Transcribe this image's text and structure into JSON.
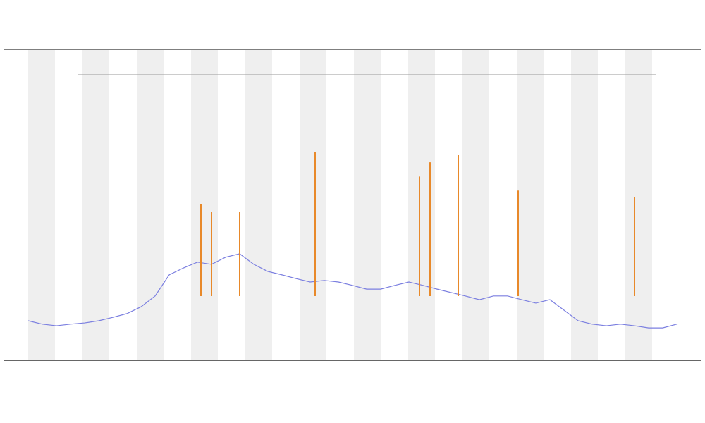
{
  "chart_data": {
    "type": "line",
    "xlim": [
      0,
      920
    ],
    "ylim": [
      0,
      100
    ],
    "series": [
      {
        "color": "#7b7fe0",
        "mark": "line",
        "x": [
          0,
          20,
          40,
          60,
          80,
          100,
          120,
          140,
          160,
          180,
          200,
          220,
          240,
          260,
          280,
          300,
          320,
          340,
          360,
          380,
          400,
          420,
          440,
          460,
          480,
          500,
          520,
          540,
          560,
          580,
          600,
          620,
          640,
          660,
          680,
          700,
          720,
          740,
          760,
          780,
          800,
          820,
          840,
          860,
          880,
          900,
          920
        ],
        "values": [
          12.5,
          11.4,
          10.9,
          11.4,
          11.8,
          12.5,
          13.6,
          14.8,
          17.0,
          20.5,
          27.3,
          29.5,
          31.4,
          30.7,
          33.0,
          34.1,
          30.7,
          28.4,
          27.3,
          26.1,
          25.0,
          25.5,
          25.0,
          23.9,
          22.7,
          22.7,
          23.9,
          25.0,
          23.9,
          22.7,
          21.6,
          20.5,
          19.3,
          20.5,
          20.5,
          19.3,
          18.2,
          19.3,
          15.9,
          12.5,
          11.4,
          10.9,
          11.4,
          10.9,
          10.2,
          10.2,
          11.4
        ]
      },
      {
        "color": "#e8892a",
        "mark": "spike",
        "x": [
          245,
          260,
          300,
          407,
          555,
          570,
          610,
          695,
          860
        ],
        "values": [
          50,
          47.7,
          47.7,
          67,
          59,
          63.6,
          65.9,
          54.5,
          52.3
        ]
      }
    ]
  }
}
